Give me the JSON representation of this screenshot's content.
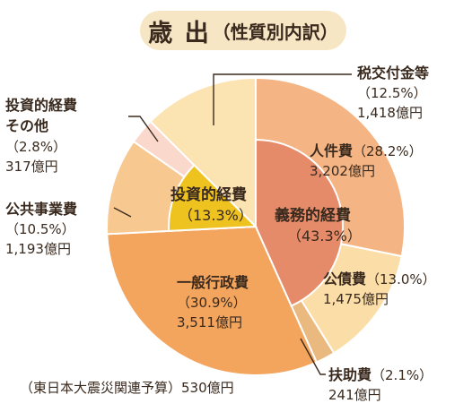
{
  "chart_data": {
    "type": "pie",
    "title": "歳 出",
    "subtitle": "（性質別内訳）",
    "start_angle_deg": 0,
    "slices": [
      {
        "label": "人件費",
        "percent": "（28.2%）",
        "value_text": "3,202億円",
        "value": 28.2,
        "color": "#f4b483"
      },
      {
        "label": "公債費",
        "percent": "（13.0%）",
        "value_text": "1,475億円",
        "value": 13.0,
        "color": "#fbdda8"
      },
      {
        "label": "扶助費",
        "percent": "（2.1%）",
        "value_text": "241億円",
        "value": 2.1,
        "color": "#e9b97f"
      },
      {
        "label": "一般行政費",
        "percent": "（30.9%）",
        "value_text": "3,511億円",
        "value": 30.9,
        "color": "#f3a55e"
      },
      {
        "label": "公共事業費",
        "percent": "（10.5%）",
        "value_text": "1,193億円",
        "value": 10.5,
        "color": "#f8c891"
      },
      {
        "label": "投資的経費その他",
        "label_lines": [
          "投資的経費",
          "その他"
        ],
        "percent": "（2.8%）",
        "value_text": "317億円",
        "value": 2.8,
        "color": "#fad9cc"
      },
      {
        "label": "税交付金等",
        "percent": "（12.5%）",
        "value_text": "1,418億円",
        "value": 12.5,
        "color": "#fce3b2"
      }
    ],
    "inner_groups": [
      {
        "label": "義務的経費",
        "percent": "（43.3%）",
        "value": 43.3,
        "color": "#e68b6a"
      },
      {
        "label": "投資的経費",
        "percent": "（13.3%）",
        "value": 13.3,
        "color": "#eec21f"
      }
    ],
    "footnote": "（東日本大震災関連予算）530億円"
  }
}
